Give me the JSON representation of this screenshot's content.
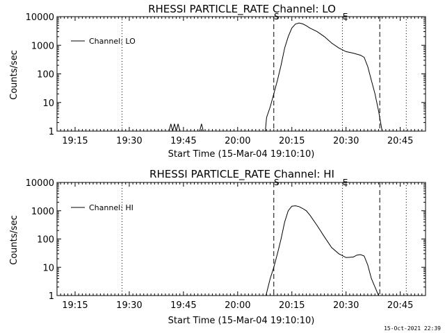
{
  "footer_timestamp": "15-Oct-2021 22:39",
  "chart_data": [
    {
      "type": "line",
      "title": "RHESSI PARTICLE_RATE Channel: LO",
      "xlabel": "Start Time (15-Mar-04 19:10:10)",
      "ylabel": "Counts/sec",
      "yscale": "log",
      "ylim": [
        1,
        10000
      ],
      "xlim": [
        "19:10",
        "20:52"
      ],
      "x_ticks": [
        "19:15",
        "19:30",
        "19:45",
        "20:00",
        "20:15",
        "20:30",
        "20:45"
      ],
      "y_ticks": [
        "1",
        "10",
        "100",
        "1000",
        "10000"
      ],
      "legend_position": "top-left",
      "series": [
        {
          "name": "Channel: LO",
          "x": [
            "19:41:00",
            "19:41:30",
            "19:42:00",
            "19:42:30",
            "19:43:00",
            "19:43:30",
            "19:44:00",
            "19:44:30",
            "19:45:00",
            "19:49:30",
            "19:50:00",
            "19:50:30",
            "20:07:40",
            "20:08:00",
            "20:09:00",
            "20:10:00",
            "20:11:00",
            "20:12:00",
            "20:13:00",
            "20:14:00",
            "20:15:00",
            "20:16:00",
            "20:17:00",
            "20:18:00",
            "20:19:00",
            "20:20:00",
            "20:22:00",
            "20:24:00",
            "20:26:00",
            "20:28:00",
            "20:30:00",
            "20:32:00",
            "20:34:00",
            "20:35:00",
            "20:36:00",
            "20:37:00",
            "20:38:00",
            "20:39:00",
            "20:40:00"
          ],
          "values": [
            1,
            1.8,
            1,
            1.8,
            1,
            1.8,
            1,
            1,
            1,
            1,
            1.8,
            1,
            1,
            3,
            7,
            20,
            60,
            200,
            800,
            2000,
            4000,
            5500,
            6000,
            5600,
            4800,
            4000,
            3000,
            2000,
            1200,
            800,
            600,
            530,
            450,
            380,
            180,
            60,
            20,
            5,
            1
          ]
        }
      ],
      "annotations": [
        {
          "label": "S",
          "x": "20:10:00",
          "style": "dashed"
        },
        {
          "label": "E",
          "x": "20:29:00",
          "style": "dotted"
        },
        {
          "label": "",
          "x": "20:39:20",
          "style": "dashed"
        },
        {
          "label": "",
          "x": "19:28:00",
          "style": "dotted"
        },
        {
          "label": "",
          "x": "20:46:40",
          "style": "dotted"
        }
      ]
    },
    {
      "type": "line",
      "title": "RHESSI PARTICLE_RATE Channel: HI",
      "xlabel": "Start Time (15-Mar-04 19:10:10)",
      "ylabel": "Counts/sec",
      "yscale": "log",
      "ylim": [
        1,
        10000
      ],
      "xlim": [
        "19:10",
        "20:52"
      ],
      "x_ticks": [
        "19:15",
        "19:30",
        "19:45",
        "20:00",
        "20:15",
        "20:30",
        "20:45"
      ],
      "y_ticks": [
        "1",
        "10",
        "100",
        "1000",
        "10000"
      ],
      "legend_position": "top-left",
      "series": [
        {
          "name": "Channel: HI",
          "x": [
            "20:07:50",
            "20:09:00",
            "20:10:00",
            "20:11:00",
            "20:12:00",
            "20:13:00",
            "20:14:00",
            "20:15:00",
            "20:16:00",
            "20:17:00",
            "20:18:00",
            "20:19:00",
            "20:20:00",
            "20:22:00",
            "20:24:00",
            "20:26:00",
            "20:28:00",
            "20:30:00",
            "20:32:00",
            "20:33:00",
            "20:34:00",
            "20:35:00",
            "20:36:00",
            "20:37:00",
            "20:38:00",
            "20:39:00"
          ],
          "values": [
            1,
            4,
            10,
            30,
            100,
            400,
            1000,
            1450,
            1500,
            1400,
            1200,
            1000,
            700,
            300,
            120,
            50,
            30,
            22,
            23,
            27,
            28,
            25,
            12,
            4,
            2,
            1
          ]
        }
      ],
      "annotations": [
        {
          "label": "S",
          "x": "20:10:00",
          "style": "dashed"
        },
        {
          "label": "E",
          "x": "20:29:00",
          "style": "dotted"
        },
        {
          "label": "",
          "x": "20:39:20",
          "style": "dashed"
        },
        {
          "label": "",
          "x": "19:28:00",
          "style": "dotted"
        },
        {
          "label": "",
          "x": "20:46:40",
          "style": "dotted"
        }
      ]
    }
  ]
}
